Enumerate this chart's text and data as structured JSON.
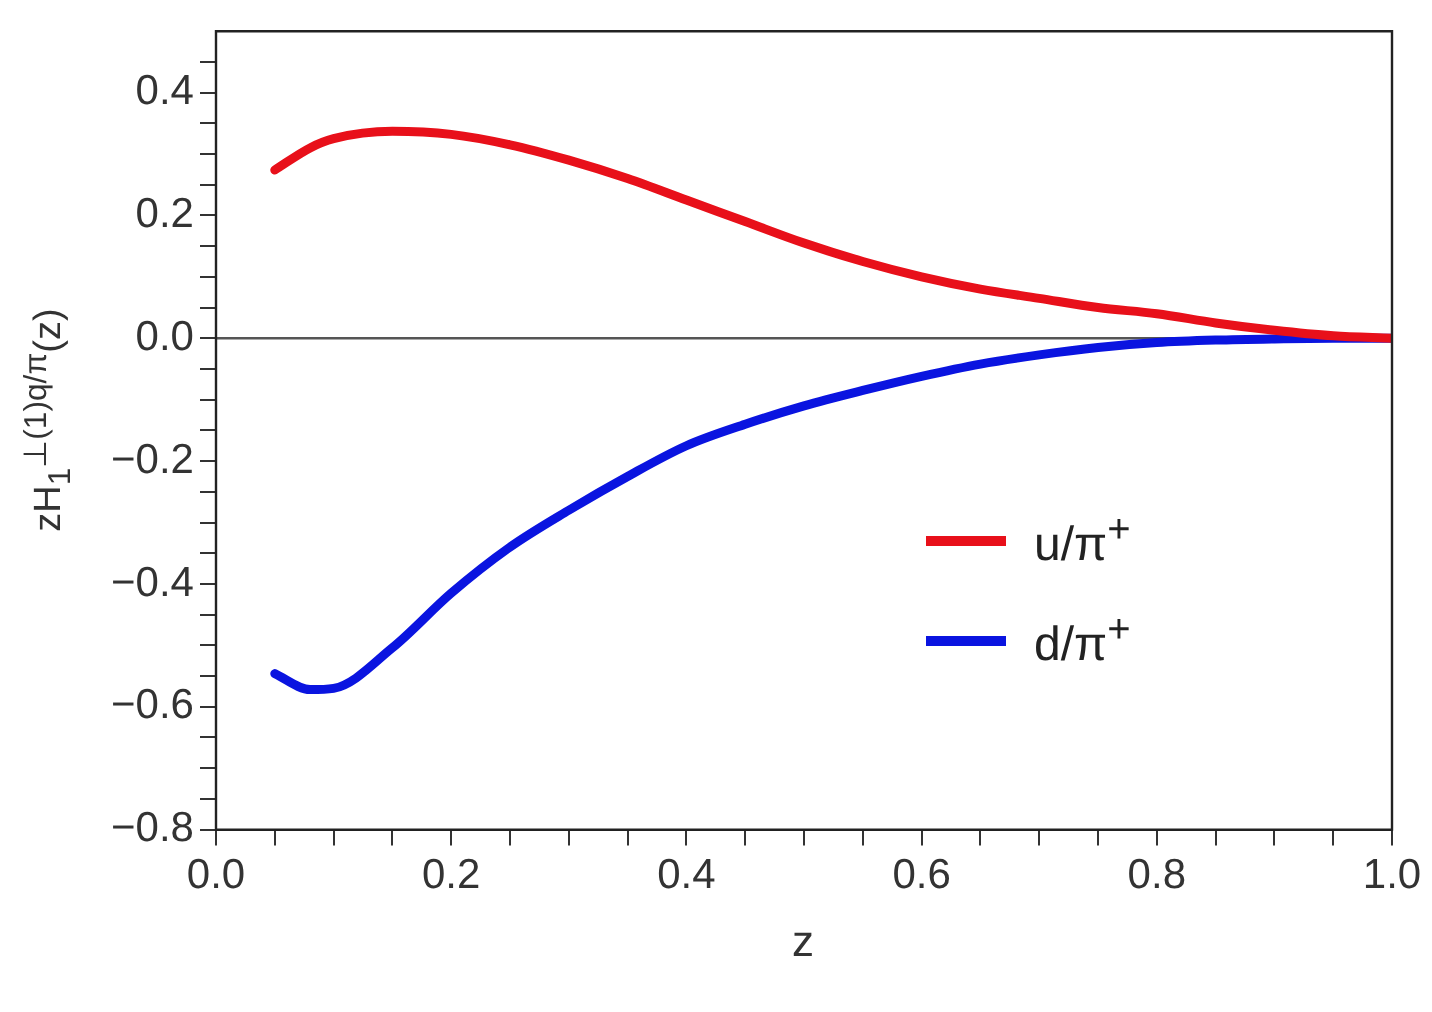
{
  "chart_data": {
    "type": "line",
    "xlabel": "z",
    "ylabel": "zH$_{1}$$^{⊥(1)q/π}$(z)",
    "xlim": [
      0,
      1
    ],
    "ylim": [
      -0.8,
      0.5
    ],
    "xticks": [
      {
        "value": 0,
        "label": "0.0"
      },
      {
        "value": 0.05,
        "label": null
      },
      {
        "value": 0.1,
        "label": null
      },
      {
        "value": 0.15,
        "label": null
      },
      {
        "value": 0.2,
        "label": "0.2"
      },
      {
        "value": 0.25,
        "label": null
      },
      {
        "value": 0.3,
        "label": null
      },
      {
        "value": 0.35,
        "label": null
      },
      {
        "value": 0.4,
        "label": "0.4"
      },
      {
        "value": 0.45,
        "label": null
      },
      {
        "value": 0.5,
        "label": null
      },
      {
        "value": 0.55,
        "label": null
      },
      {
        "value": 0.6,
        "label": "0.6"
      },
      {
        "value": 0.65,
        "label": null
      },
      {
        "value": 0.7,
        "label": null
      },
      {
        "value": 0.75,
        "label": null
      },
      {
        "value": 0.8,
        "label": "0.8"
      },
      {
        "value": 0.85,
        "label": null
      },
      {
        "value": 0.9,
        "label": null
      },
      {
        "value": 0.95,
        "label": null
      },
      {
        "value": 1,
        "label": "1.0"
      }
    ],
    "yticks": [
      {
        "value": -0.8,
        "label": "−0.8"
      },
      {
        "value": -0.75,
        "label": null
      },
      {
        "value": -0.7,
        "label": null
      },
      {
        "value": -0.65,
        "label": null
      },
      {
        "value": -0.6,
        "label": "−0.6"
      },
      {
        "value": -0.55,
        "label": null
      },
      {
        "value": -0.5,
        "label": null
      },
      {
        "value": -0.45,
        "label": null
      },
      {
        "value": -0.4,
        "label": "−0.4"
      },
      {
        "value": -0.35,
        "label": null
      },
      {
        "value": -0.3,
        "label": null
      },
      {
        "value": -0.25,
        "label": null
      },
      {
        "value": -0.2,
        "label": "−0.2"
      },
      {
        "value": -0.15,
        "label": null
      },
      {
        "value": -0.1,
        "label": null
      },
      {
        "value": -0.05,
        "label": null
      },
      {
        "value": 0,
        "label": "0.0"
      },
      {
        "value": 0.05,
        "label": null
      },
      {
        "value": 0.1,
        "label": null
      },
      {
        "value": 0.15,
        "label": null
      },
      {
        "value": 0.2,
        "label": "0.2"
      },
      {
        "value": 0.25,
        "label": null
      },
      {
        "value": 0.3,
        "label": null
      },
      {
        "value": 0.35,
        "label": null
      },
      {
        "value": 0.4,
        "label": "0.4"
      },
      {
        "value": 0.45,
        "label": null
      }
    ],
    "x": [
      0.05,
      0.08,
      0.1,
      0.15,
      0.2,
      0.25,
      0.3,
      0.35,
      0.4,
      0.45,
      0.5,
      0.55,
      0.6,
      0.65,
      0.7,
      0.75,
      0.8,
      0.85,
      0.9,
      0.95,
      1.0
    ],
    "series": [
      {
        "name": "u/π$^{+}$",
        "color": "#e8101a",
        "values": [
          0.274,
          0.31,
          0.325,
          0.337,
          0.332,
          0.315,
          0.29,
          0.26,
          0.225,
          0.19,
          0.155,
          0.125,
          0.1,
          0.08,
          0.065,
          0.05,
          0.04,
          0.025,
          0.013,
          0.004,
          0
        ]
      },
      {
        "name": "d/π$^{+}$",
        "color": "#0a14e0",
        "values": [
          -0.546,
          -0.572,
          -0.57,
          -0.504,
          -0.415,
          -0.34,
          -0.28,
          -0.225,
          -0.175,
          -0.14,
          -0.11,
          -0.085,
          -0.062,
          -0.042,
          -0.027,
          -0.015,
          -0.007,
          -0.003,
          -0.001,
          0,
          0
        ]
      }
    ],
    "ref_lines": [
      {
        "axis": "y",
        "value": 0,
        "color": "#555555"
      }
    ],
    "legend": "center right",
    "grid": false,
    "line_style": "solid",
    "marker": "none"
  }
}
